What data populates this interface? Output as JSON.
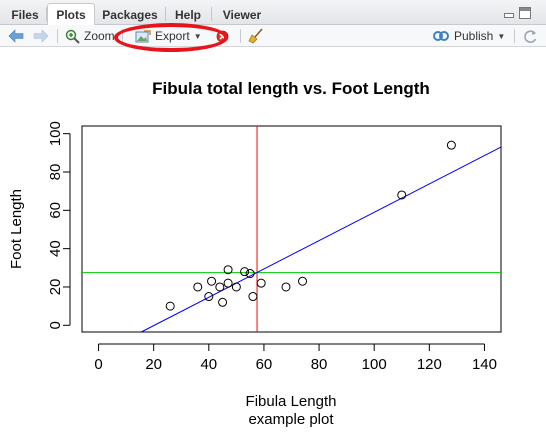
{
  "tabs": [
    {
      "label": "Files",
      "active": false
    },
    {
      "label": "Plots",
      "active": true
    },
    {
      "label": "Packages",
      "active": false
    },
    {
      "label": "Help",
      "active": false
    },
    {
      "label": "Viewer",
      "active": false
    }
  ],
  "toolbar": {
    "zoom_label": "Zoom",
    "export_label": "Export",
    "publish_label": "Publish"
  },
  "colors": {
    "back_arrow": "#6a9fd8",
    "forward_arrow": "#c5d6ea",
    "annotation": "#e8141c",
    "publish_icon": "#3b82c4"
  },
  "icons": [
    "back-arrow-icon",
    "forward-arrow-icon",
    "zoom-icon",
    "export-image-icon",
    "remove-plot-icon",
    "broom-icon",
    "publish-icon",
    "refresh-icon",
    "minimize-icon",
    "maximize-icon"
  ],
  "chart_data": {
    "type": "scatter",
    "title": "Fibula total length vs. Foot Length",
    "xlabel": "Fibula Length",
    "ylabel": "Foot Length",
    "subtitle": "example plot",
    "xlim": [
      -6,
      146
    ],
    "ylim": [
      -3.5,
      104
    ],
    "xticks": [
      0,
      20,
      40,
      60,
      80,
      100,
      120,
      140
    ],
    "yticks": [
      0,
      20,
      40,
      60,
      80,
      100
    ],
    "points": [
      {
        "x": 26,
        "y": 10
      },
      {
        "x": 36,
        "y": 20
      },
      {
        "x": 40,
        "y": 15
      },
      {
        "x": 41,
        "y": 23
      },
      {
        "x": 44,
        "y": 20
      },
      {
        "x": 45,
        "y": 12
      },
      {
        "x": 47,
        "y": 29
      },
      {
        "x": 47,
        "y": 22
      },
      {
        "x": 50,
        "y": 20
      },
      {
        "x": 53,
        "y": 28
      },
      {
        "x": 55,
        "y": 27
      },
      {
        "x": 56,
        "y": 15
      },
      {
        "x": 59,
        "y": 22
      },
      {
        "x": 68,
        "y": 20
      },
      {
        "x": 74,
        "y": 23
      },
      {
        "x": 110,
        "y": 68
      },
      {
        "x": 128,
        "y": 94
      }
    ],
    "regression_line": {
      "color": "#0000ff",
      "x0": 15.5,
      "y0": -3.5,
      "x1": 146,
      "y1": 93
    },
    "vline": {
      "x": 57.5,
      "color": "#ff0000"
    },
    "hline": {
      "y": 27.5,
      "color": "#00cc00"
    },
    "grid": false,
    "legend": "none"
  }
}
